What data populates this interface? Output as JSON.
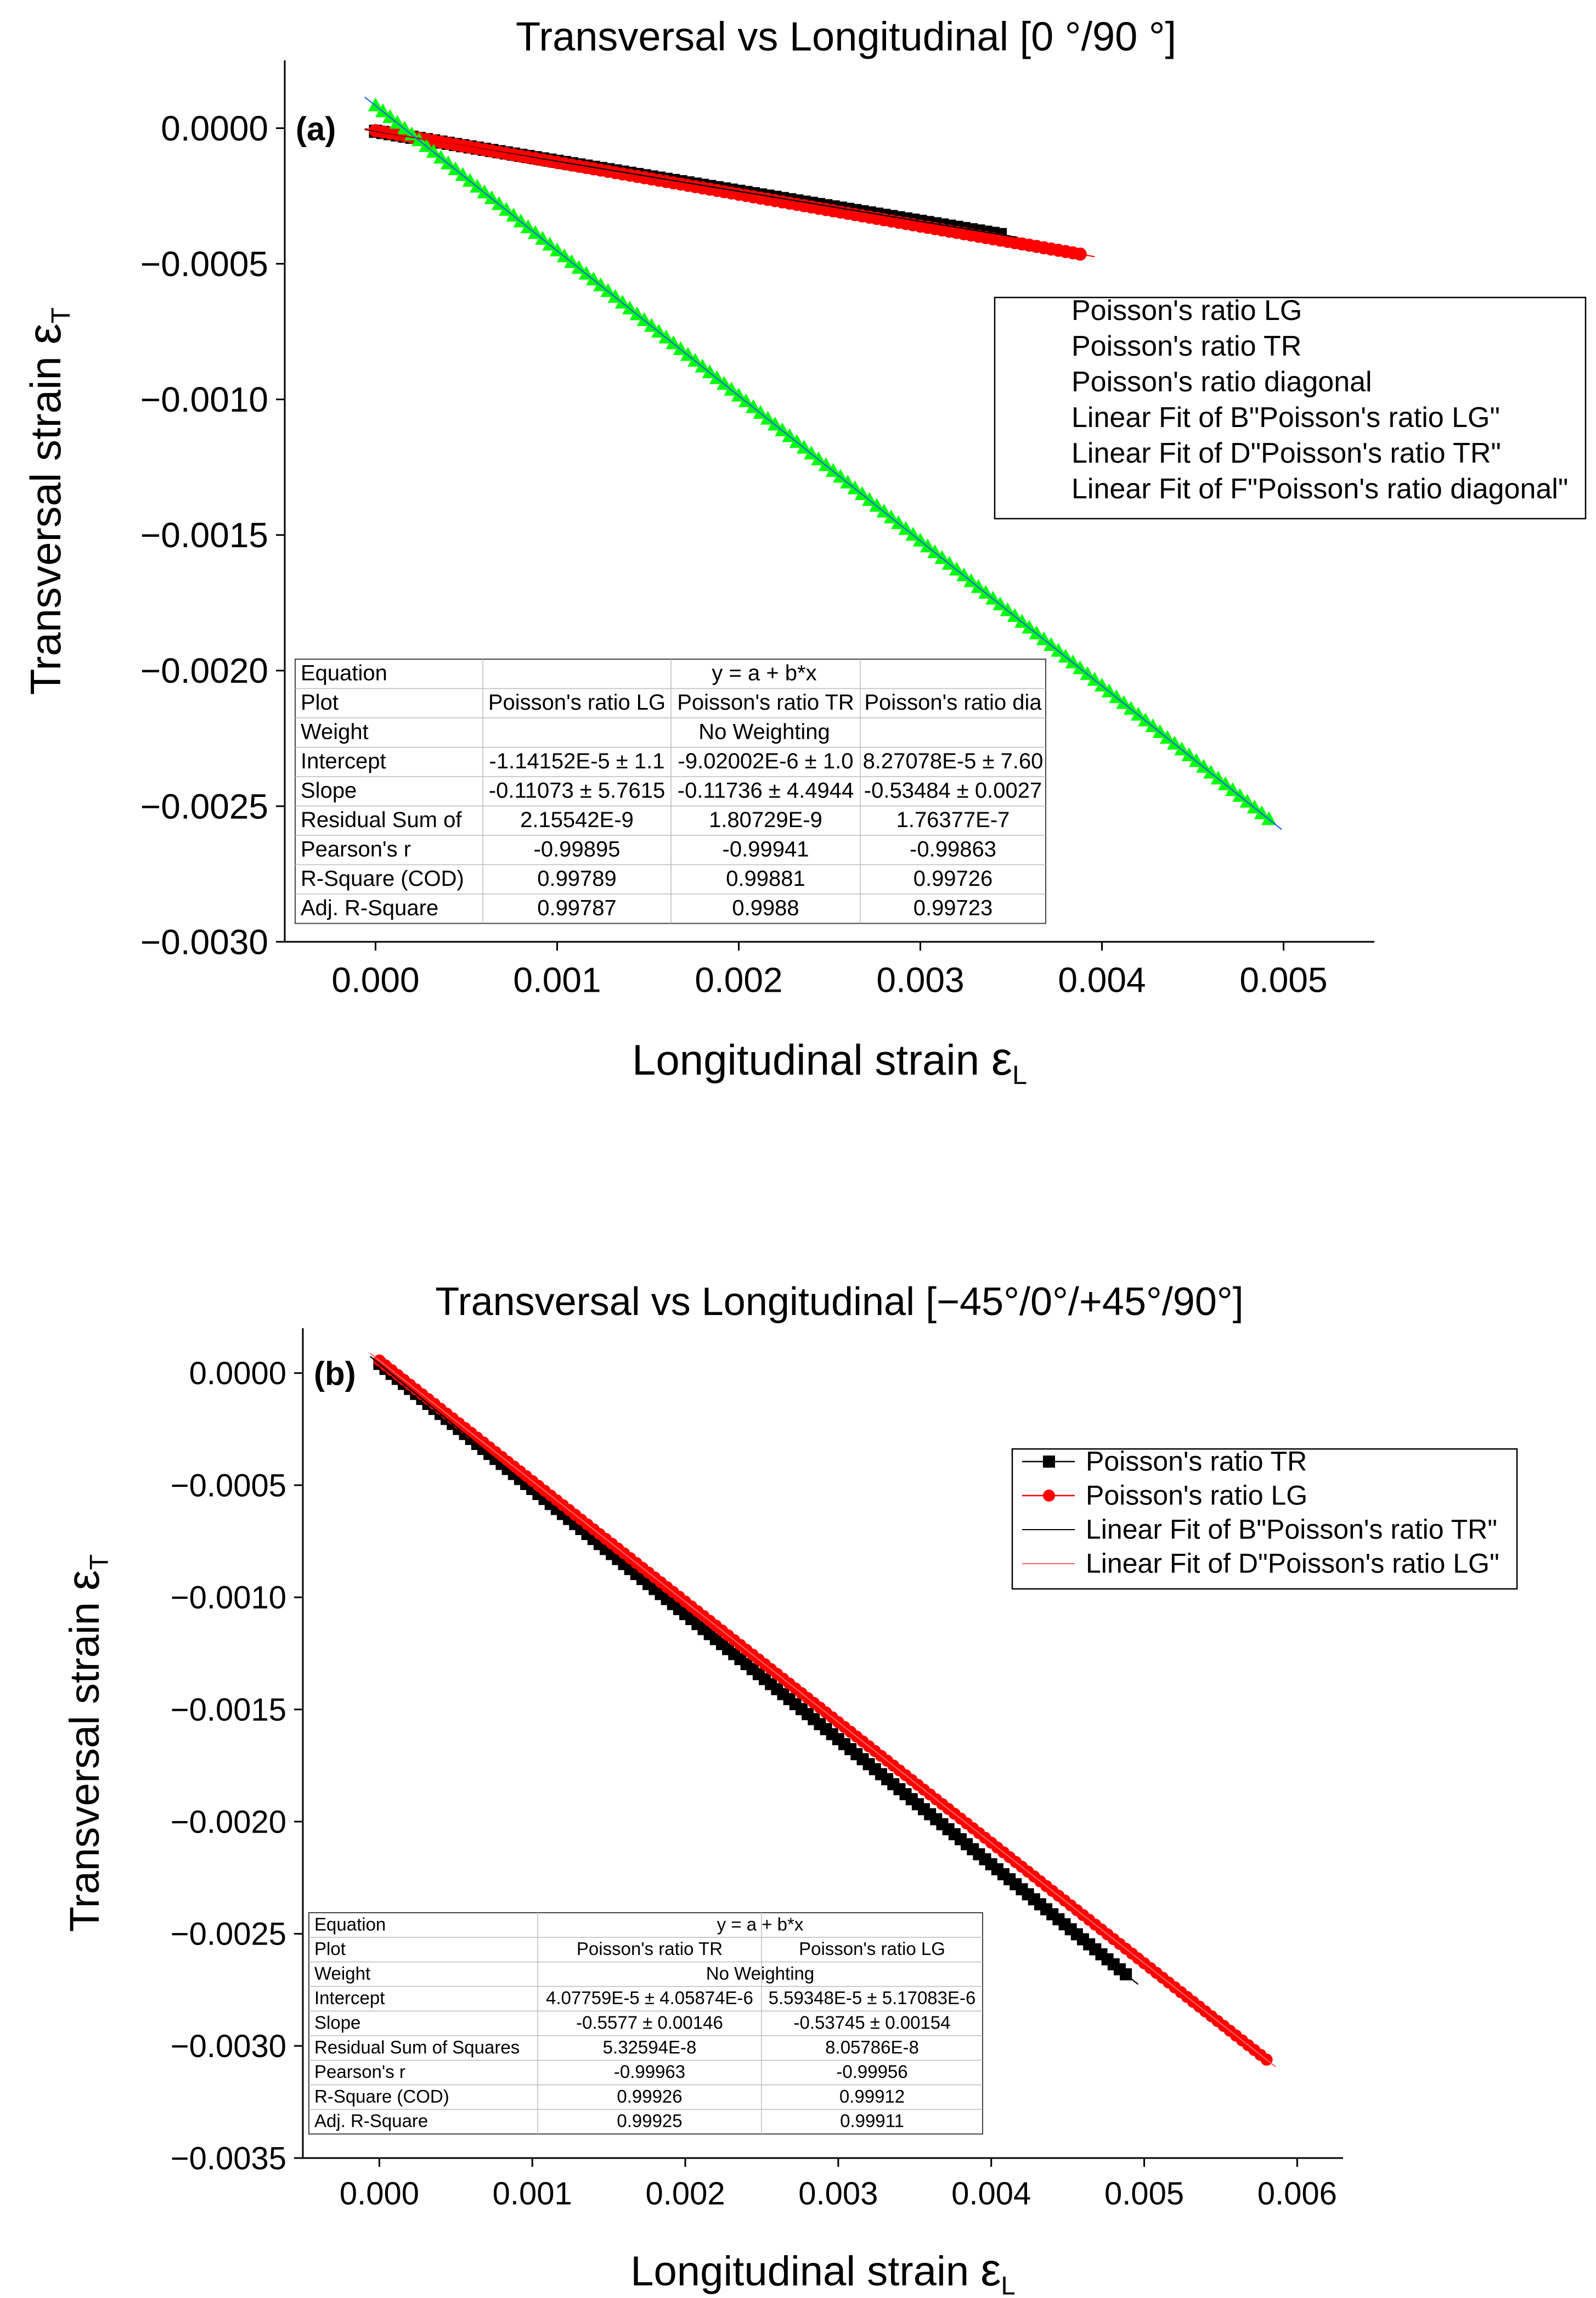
{
  "chart_data": [
    {
      "type": "scatter",
      "panel_label": "(a)",
      "title": "Transversal vs Longitudinal [0 °/90 °]",
      "xlabel": "Longitudinal strain",
      "xlabel_symbol": "ε",
      "xlabel_sub": "L",
      "ylabel": "Transversal strain",
      "ylabel_symbol": "ε",
      "ylabel_sub": "T",
      "xlim": [
        -0.0005,
        0.0055
      ],
      "ylim": [
        -0.003,
        0.00025
      ],
      "x_ticks": [
        "0.000",
        "0.001",
        "0.002",
        "0.003",
        "0.004",
        "0.005"
      ],
      "y_ticks": [
        "0.0000",
        "−0.0005",
        "−0.0010",
        "−0.0015",
        "−0.0020",
        "−0.0025",
        "−0.0030"
      ],
      "legend_position": "right",
      "series": [
        {
          "name": "Poisson's ratio LG",
          "marker": "square",
          "color": "#000000",
          "x_start": 0.0,
          "x_end": 0.00347,
          "slope": -0.11073,
          "intercept": -1.14152e-05
        },
        {
          "name": "Poisson's ratio TR",
          "marker": "circle",
          "color": "#ff0000",
          "x_start": 0.0,
          "x_end": 0.0039,
          "slope": -0.11736,
          "intercept": -9.02002e-06
        },
        {
          "name": "Poisson's ratio diagonal",
          "marker": "triangle",
          "color": "#00ff00",
          "x_start": 0.0,
          "x_end": 0.00493,
          "slope": -0.53484,
          "intercept": 8.27078e-05
        }
      ],
      "fits": [
        {
          "name": "Linear Fit of B\"Poisson's ratio LG\"",
          "color": "#000000",
          "x_start": 0.0,
          "x_end": 0.00347,
          "slope": -0.11073,
          "intercept": -1.14152e-05
        },
        {
          "name": "Linear Fit of D\"Poisson's ratio TR\"",
          "color": "#ff0000",
          "x_start": 0.0,
          "x_end": 0.0039,
          "slope": -0.11736,
          "intercept": -9.02002e-06
        },
        {
          "name": "Linear Fit of F\"Poisson's ratio diagonal\"",
          "color": "#1f5fff",
          "x_start": 0.0,
          "x_end": 0.00493,
          "slope": -0.53484,
          "intercept": 8.27078e-05
        }
      ],
      "fit_table": {
        "rows": [
          [
            "Equation",
            "y = a + b*x"
          ],
          [
            "Plot",
            "Poisson's ratio LG",
            "Poisson's ratio TR",
            "Poisson's ratio dia"
          ],
          [
            "Weight",
            "No Weighting"
          ],
          [
            "Intercept",
            "-1.14152E-5 ± 1.1",
            "-9.02002E-6 ± 1.0",
            "8.27078E-5 ± 7.60"
          ],
          [
            "Slope",
            "-0.11073 ± 5.7615",
            "-0.11736 ± 4.4944",
            "-0.53484 ± 0.0027"
          ],
          [
            "Residual Sum of",
            "2.15542E-9",
            "1.80729E-9",
            "1.76377E-7"
          ],
          [
            "Pearson's r",
            "-0.99895",
            "-0.99941",
            "-0.99863"
          ],
          [
            "R-Square (COD)",
            "0.99789",
            "0.99881",
            "0.99726"
          ],
          [
            "Adj. R-Square",
            "0.99787",
            "0.9988",
            "0.99723"
          ]
        ]
      }
    },
    {
      "type": "scatter",
      "panel_label": "(b)",
      "title": "Transversal vs Longitudinal [−45°/0°/+45°/90°]",
      "xlabel": "Longitudinal strain",
      "xlabel_symbol": "ε",
      "xlabel_sub": "L",
      "ylabel": "Transversal strain",
      "ylabel_symbol": "ε",
      "ylabel_sub": "T",
      "xlim": [
        -0.0005,
        0.0063
      ],
      "ylim": [
        -0.0035,
        0.0002
      ],
      "x_ticks": [
        "0.000",
        "0.001",
        "0.002",
        "0.003",
        "0.004",
        "0.005",
        "0.006"
      ],
      "y_ticks": [
        "0.0000",
        "−0.0005",
        "−0.0010",
        "−0.0015",
        "−0.0020",
        "−0.0025",
        "−0.0030",
        "−0.0035"
      ],
      "legend_position": "right",
      "series": [
        {
          "name": "Poisson's ratio TR",
          "marker": "square",
          "color": "#000000",
          "x_start": 0.0,
          "x_end": 0.0049,
          "slope": -0.5577,
          "intercept": 4.07759e-05
        },
        {
          "name": "Poisson's ratio LG",
          "marker": "circle",
          "color": "#ff0000",
          "x_start": 0.0,
          "x_end": 0.0058,
          "slope": -0.53745,
          "intercept": 5.59348e-05
        }
      ],
      "fits": [
        {
          "name": "Linear Fit of B\"Poisson's ratio TR\"",
          "color": "#000000",
          "x_start": 0.0,
          "x_end": 0.0049,
          "slope": -0.5577,
          "intercept": 4.07759e-05
        },
        {
          "name": "Linear Fit of D\"Poisson's ratio LG\"",
          "color": "#ff6060",
          "x_start": 0.0,
          "x_end": 0.0058,
          "slope": -0.53745,
          "intercept": 5.59348e-05
        }
      ],
      "fit_table": {
        "rows": [
          [
            "Equation",
            "y = a + b*x"
          ],
          [
            "Plot",
            "Poisson's ratio TR",
            "Poisson's ratio LG"
          ],
          [
            "Weight",
            "No Weighting"
          ],
          [
            "Intercept",
            "4.07759E-5 ± 4.05874E-6",
            "5.59348E-5 ± 5.17083E-6"
          ],
          [
            "Slope",
            "-0.5577 ± 0.00146",
            "-0.53745 ± 0.00154"
          ],
          [
            "Residual Sum of Squares",
            "5.32594E-8",
            "8.05786E-8"
          ],
          [
            "Pearson's r",
            "-0.99963",
            "-0.99956"
          ],
          [
            "R-Square (COD)",
            "0.99926",
            "0.99912"
          ],
          [
            "Adj. R-Square",
            "0.99925",
            "0.99911"
          ]
        ]
      }
    }
  ]
}
